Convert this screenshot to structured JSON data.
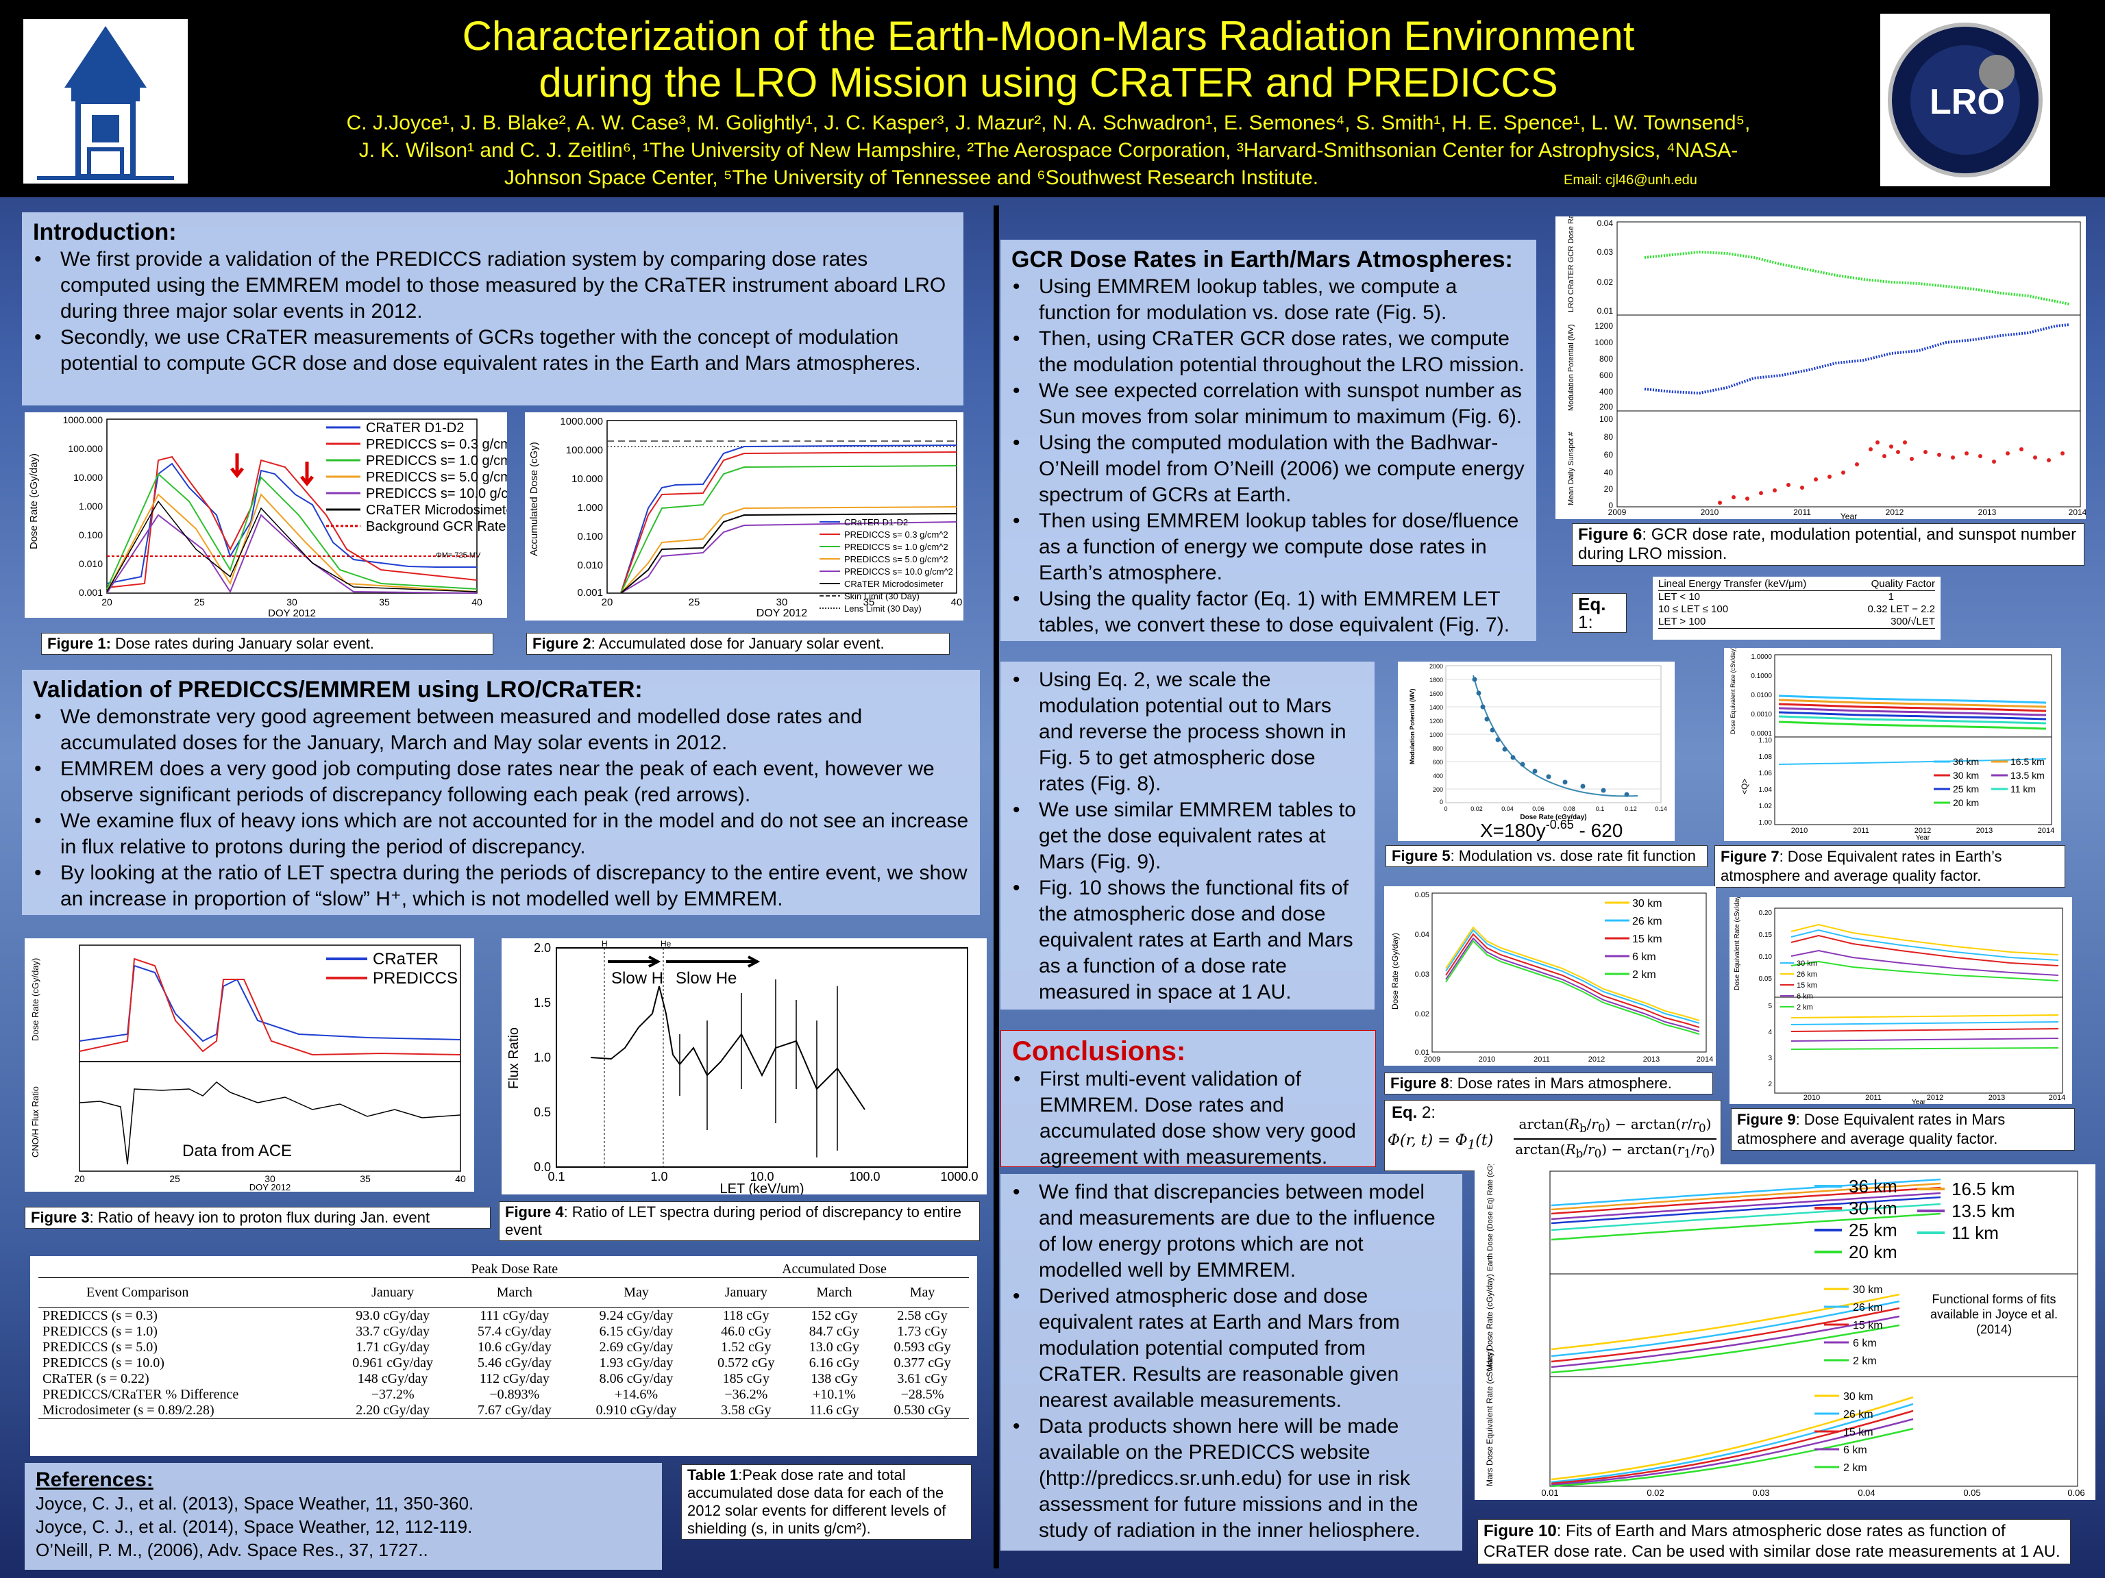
{
  "header": {
    "title_line1": "Characterization of the Earth-Moon-Mars Radiation Environment",
    "title_line2": "during the LRO Mission using CRaTER and PREDICCS",
    "authors_line1": "C. J.Joyce¹, J. B. Blake², A. W. Case³, M. Golightly¹, J. C. Kasper³, J. Mazur², N. A. Schwadron¹, E. Semones⁴, S. Smith¹, H. E. Spence¹, L. W. Townsend⁵,",
    "authors_line2": "J. K. Wilson¹ and C. J. Zeitlin⁶, ¹The University of New Hampshire, ²The Aerospace Corporation, ³Harvard-Smithsonian Center for Astrophysics, ⁴NASA-",
    "authors_line3": "Johnson Space Center, ⁵The University of Tennessee and ⁶Southwest Research Institute.",
    "email": "Email: cjl46@unh.edu",
    "logo_right_text": "LRO"
  },
  "intro": {
    "heading": "Introduction:",
    "bullets": [
      "We first provide a validation of the PREDICCS radiation system by comparing dose rates computed using the EMMREM model to those measured by the CRaTER instrument aboard LRO during three major solar events in 2012.",
      "Secondly, we use CRaTER measurements of GCRs together with the concept of modulation potential to compute GCR dose and dose equivalent rates in the Earth and Mars atmospheres."
    ]
  },
  "fig1": {
    "caption_label": "Figure 1:",
    "caption": " Dose rates during January solar event.",
    "ylabel": "Dose Rate (cGy/day)",
    "xlabel": "DOY 2012",
    "yticks": [
      "1000.000",
      "100.000",
      "10.000",
      "1.000",
      "0.100",
      "0.010",
      "0.001"
    ],
    "xticks": [
      "20",
      "25",
      "30",
      "35",
      "40"
    ],
    "legend": [
      "CRaTER D1-D2",
      "PREDICCS s= 0.3 g/cm^2",
      "PREDICCS s= 1.0 g/cm^2",
      "PREDICCS s= 5.0 g/cm^2",
      "PREDICCS s= 10.0 g/cm^2",
      "CRaTER Microdosimeter",
      "Background GCR Rate"
    ],
    "note": "ΦM= 725 MV"
  },
  "fig2": {
    "caption_label": "Figure 2",
    "caption": ": Accumulated dose for January solar event.",
    "ylabel": "Accumulated Dose (cGy)",
    "xlabel": "DOY 2012",
    "yticks": [
      "1000.000",
      "100.000",
      "10.000",
      "1.000",
      "0.100",
      "0.010",
      "0.001"
    ],
    "xticks": [
      "20",
      "25",
      "30",
      "35",
      "40"
    ],
    "legend": [
      "CRaTER D1-D2",
      "PREDICCS s= 0.3 g/cm^2",
      "PREDICCS s= 1.0 g/cm^2",
      "PREDICCS s= 5.0 g/cm^2",
      "PREDICCS s= 10.0 g/cm^2",
      "CRaTER Microdosimeter",
      "Skin Limit (30 Day)",
      "Lens Limit (30 Day)"
    ]
  },
  "validation": {
    "heading": "Validation of PREDICCS/EMMREM using LRO/CRaTER:",
    "bullets": [
      "We demonstrate very good agreement between measured and modelled dose rates and accumulated doses for the January, March and May solar events in 2012.",
      "EMMREM does a very good job computing dose rates near the peak of each event, however we observe significant periods of discrepancy following each peak (red arrows).",
      "We examine flux of heavy ions which are not accounted for in the model and do not see an increase in flux relative to protons during the period of discrepancy.",
      "By looking at the ratio of LET spectra during the periods of discrepancy to the entire event, we show an increase in proportion of “slow” H⁺, which is not modelled well by EMMREM."
    ]
  },
  "fig3": {
    "caption_label": "Figure 3",
    "caption": ": Ratio of heavy ion to proton flux during Jan. event",
    "legend": [
      "CRaTER",
      "PREDICCS"
    ],
    "ylabel_top": "Dose Rate (cGy/day)",
    "ylabel_bottom": "CNO/H Flux Ratio",
    "xlabel": "DOY 2012",
    "xticks": [
      "20",
      "25",
      "30",
      "35",
      "40"
    ],
    "note": "Data  from ACE"
  },
  "fig4": {
    "caption_label": "Figure 4",
    "caption": ": Ratio of LET spectra during period of discrepancy to entire event",
    "ylabel": "Flux Ratio",
    "xlabel": "LET (keV/um)",
    "yticks": [
      "2.0",
      "1.5",
      "1.0",
      "0.5",
      "0.0"
    ],
    "xticks": [
      "0.1",
      "1.0",
      "10.0",
      "100.0",
      "1000.0"
    ],
    "label_h": "H",
    "label_he": "He",
    "slow_h": "Slow H",
    "slow_he": "Slow He"
  },
  "table1": {
    "group1": "Peak Dose Rate",
    "group2": "Accumulated Dose",
    "columns": [
      "Event Comparison",
      "January",
      "March",
      "May",
      "January",
      "March",
      "May"
    ],
    "rows": [
      [
        "PREDICCS (s = 0.3)",
        "93.0 cGy/day",
        "111 cGy/day",
        "9.24 cGy/day",
        "118 cGy",
        "152 cGy",
        "2.58 cGy"
      ],
      [
        "PREDICCS (s = 1.0)",
        "33.7 cGy/day",
        "57.4 cGy/day",
        "6.15 cGy/day",
        "46.0 cGy",
        "84.7 cGy",
        "1.73 cGy"
      ],
      [
        "PREDICCS (s = 5.0)",
        "1.71 cGy/day",
        "10.6 cGy/day",
        "2.69 cGy/day",
        "1.52 cGy",
        "13.0 cGy",
        "0.593 cGy"
      ],
      [
        "PREDICCS (s = 10.0)",
        "0.961 cGy/day",
        "5.46 cGy/day",
        "1.93 cGy/day",
        "0.572 cGy",
        "6.16 cGy",
        "0.377 cGy"
      ],
      [
        "CRaTER (s = 0.22)",
        "148 cGy/day",
        "112 cGy/day",
        "8.06 cGy/day",
        "185 cGy",
        "138 cGy",
        "3.61 cGy"
      ],
      [
        "PREDICCS/CRaTER % Difference",
        "−37.2%",
        "−0.893%",
        "+14.6%",
        "−36.2%",
        "+10.1%",
        "−28.5%"
      ],
      [
        "Microdosimeter (s = 0.89/2.28)",
        "2.20 cGy/day",
        "7.67 cGy/day",
        "0.910 cGy/day",
        "3.58 cGy",
        "11.6 cGy",
        "0.530 cGy"
      ]
    ],
    "caption_label": "Table 1",
    "caption": ":Peak dose rate and total accumulated dose data for each of the 2012 solar events for different levels of shielding (s, in units g/cm²)."
  },
  "references": {
    "heading": "References:",
    "items": [
      "Joyce, C. J., et al. (2013), Space Weather, 11, 350-360.",
      "Joyce, C. J., et al. (2014), Space Weather, 12, 112-119.",
      "O’Neill, P. M., (2006), Adv. Space Res., 37, 1727.."
    ]
  },
  "gcr": {
    "heading": "GCR Dose Rates in Earth/Mars Atmospheres:",
    "bullets": [
      "Using EMMREM lookup tables, we compute a function for modulation vs. dose rate (Fig. 5).",
      "Then, using CRaTER GCR dose rates, we compute the modulation potential throughout the LRO mission.",
      "We see expected correlation with sunspot number as Sun moves from solar minimum to maximum (Fig. 6).",
      "Using the computed modulation with the Badhwar-O’Neill model from O’Neill (2006) we compute energy spectrum of GCRs at Earth.",
      "Then using EMMREM lookup tables for dose/fluence as a function of energy we compute dose rates in Earth’s atmosphere.",
      "Using the quality factor (Eq. 1) with EMMREM LET tables, we convert these to dose equivalent (Fig. 7)."
    ]
  },
  "fig6": {
    "caption_label": "Figure 6",
    "caption": ": GCR dose rate, modulation potential, and sunspot number during LRO mission.",
    "ylabel_a": "LRO CRaTER GCR Dose Rate",
    "ylabel_b": "Modulation Potential (MV)",
    "ylabel_c": "Mean Daily Sunspot #",
    "xlabel": "Year",
    "xticks": [
      "2009",
      "2010",
      "2011",
      "2012",
      "2013",
      "2014"
    ],
    "yticks_a": [
      "0.04",
      "0.03",
      "0.02",
      "0.01"
    ],
    "yticks_b": [
      "1200",
      "1000",
      "800",
      "600",
      "400",
      "200"
    ],
    "yticks_c": [
      "100",
      "80",
      "60",
      "40",
      "20",
      "0"
    ]
  },
  "eq1": {
    "label": "Eq.",
    "num": "1",
    "col1": "Lineal Energy Transfer (keV/μm)",
    "col2": "Quality Factor",
    "rows": [
      [
        "LET < 10",
        "1"
      ],
      [
        "10 ≤ LET ≤ 100",
        "0.32 LET − 2.2"
      ],
      [
        "LET > 100",
        "300/√LET"
      ]
    ]
  },
  "mars_box": {
    "bullets": [
      "Using Eq. 2, we scale the modulation potential out to Mars and reverse the process shown in Fig. 5 to get atmospheric dose rates (Fig. 8).",
      " We use similar EMMREM tables to get the dose equivalent rates at Mars (Fig. 9).",
      "Fig. 10 shows the functional fits of the atmospheric dose and dose equivalent rates at Earth and Mars as a function of a dose rate measured in space at 1 AU."
    ]
  },
  "fig5": {
    "caption_label": "Figure 5",
    "caption": ": Modulation vs. dose rate fit function",
    "formula": "X=180y",
    "exponent": "-0.65",
    "formula_tail": " - 620",
    "xlabel": "Dose Rate (cGy/day)",
    "ylabel": "Modulation Potential (MV)",
    "xticks": [
      "0",
      "0.02",
      "0.04",
      "0.06",
      "0.08",
      "0.1",
      "0.12",
      "0.14"
    ],
    "yticks": [
      "2000",
      "1800",
      "1600",
      "1400",
      "1200",
      "1000",
      "800",
      "600",
      "400",
      "200",
      "0"
    ]
  },
  "fig7": {
    "caption_label": "Figure 7",
    "caption": ":  Dose Equivalent rates in Earth’s atmosphere and average quality factor.",
    "ylabel": "Dose Equivalent Rate (cSv/day)",
    "ylabel_q": "<Q>",
    "xlabel": "Year",
    "xticks": [
      "2010",
      "2011",
      "2012",
      "2013",
      "2014"
    ],
    "yticks_top": [
      "1.0000",
      "0.1000",
      "0.0100",
      "0.0010",
      "0.0001"
    ],
    "yticks_bottom": [
      "1.10",
      "1.08",
      "1.06",
      "1.04",
      "1.02",
      "1.00"
    ],
    "legend": [
      "36 km",
      "16.5 km",
      "30 km",
      "13.5 km",
      "25 km",
      "11 km",
      "20 km"
    ]
  },
  "fig8": {
    "caption_label": "Figure 8",
    "caption": ": Dose rates in Mars atmosphere.",
    "ylabel": "Dose Rate (cGy/day)",
    "xticks": [
      "2009",
      "2010",
      "2011",
      "2012",
      "2013",
      "2014"
    ],
    "yticks": [
      "0.05",
      "0.04",
      "0.03",
      "0.02",
      "0.01"
    ],
    "legend": [
      "30 km",
      "26 km",
      "15 km",
      "6 km",
      "2 km"
    ]
  },
  "fig9": {
    "caption_label": "Figure 9",
    "caption": ": Dose Equivalent rates in Mars atmosphere and average quality factor.",
    "ylabel": "Dose Equivalent Rate (cSv/day)",
    "xlabel": "Year",
    "xticks": [
      "2010",
      "2011",
      "2012",
      "2013",
      "2014"
    ],
    "yticks_top": [
      "0.20",
      "0.15",
      "0.10",
      "0.05"
    ],
    "yticks_bottom": [
      "5",
      "4",
      "3",
      "2"
    ],
    "legend": [
      "30 km",
      "26 km",
      "15 km",
      "6 km",
      "2 km"
    ]
  },
  "eq2": {
    "label": "Eq.",
    "num": "2:"
  },
  "conclusions": {
    "heading": "Conclusions:",
    "bullets": [
      "First multi-event validation of EMMREM. Dose rates and accumulated dose show very good agreement with measurements.",
      "We find that discrepancies between model and measurements are due to the influence of low energy protons which are not modelled well by EMMREM.",
      "Derived atmospheric dose  and dose equivalent rates at Earth and Mars from modulation potential computed from CRaTER. Results are reasonable given nearest available measurements.",
      "Data products shown here will be made available on the PREDICCS website (http://prediccs.sr.unh.edu) for use in risk assessment for future missions and in the study of radiation in the inner heliosphere."
    ]
  },
  "fig10": {
    "caption_label": "Figure 10",
    "caption": ": Fits of Earth and Mars atmospheric dose rates as function of CRaTER dose rate. Can be used with similar dose rate measurements at 1 AU.",
    "legend_a": [
      "36 km",
      "16.5 km",
      "30 km",
      "13.5 km",
      "25 km",
      "11 km",
      "20 km"
    ],
    "legend_b": [
      "30 km",
      "26 km",
      "15 km",
      "6 km",
      "2 km"
    ],
    "legend_c": [
      "30 km",
      "26 km",
      "15 km",
      "6 km",
      "2 km"
    ],
    "note": "Functional forms of fits available in Joyce et al. (2014)",
    "ylabel_a": "Earth Dose (Dose Eq) Rate (cGy/day (cSv/day))",
    "ylabel_b": "Mars Dose Rate (cGy/day)",
    "ylabel_c": "Mars Dose Equivalent Rate (cSv/day)",
    "xlabel": "CRaTER Dose Rate",
    "xticks": [
      "0.01",
      "0.02",
      "0.03",
      "0.04",
      "0.05",
      "0.06"
    ]
  },
  "colors": {
    "title": "#ffff1e",
    "box": "#bed0f2",
    "conclusion_heading": "#cc0000"
  }
}
